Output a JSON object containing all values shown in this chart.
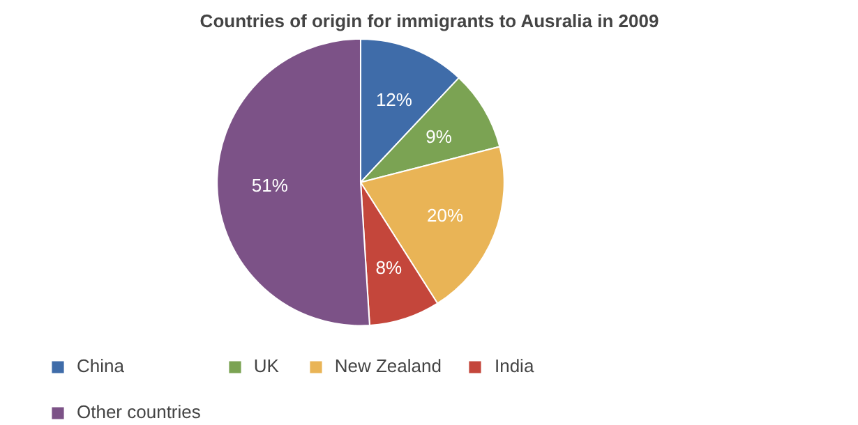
{
  "chart_data": {
    "type": "pie",
    "title": "Countries of origin for immigrants to Ausralia in 2009",
    "categories": [
      "China",
      "UK",
      "New Zealand",
      "India",
      "Other countries"
    ],
    "values": [
      12,
      9,
      20,
      8,
      51
    ],
    "colors": [
      "#3f6ca9",
      "#7ba353",
      "#e9b456",
      "#c4463b",
      "#7c5287"
    ],
    "value_labels": [
      "12%",
      "9%",
      "20%",
      "8%",
      "51%"
    ],
    "legend": "bottom left"
  }
}
